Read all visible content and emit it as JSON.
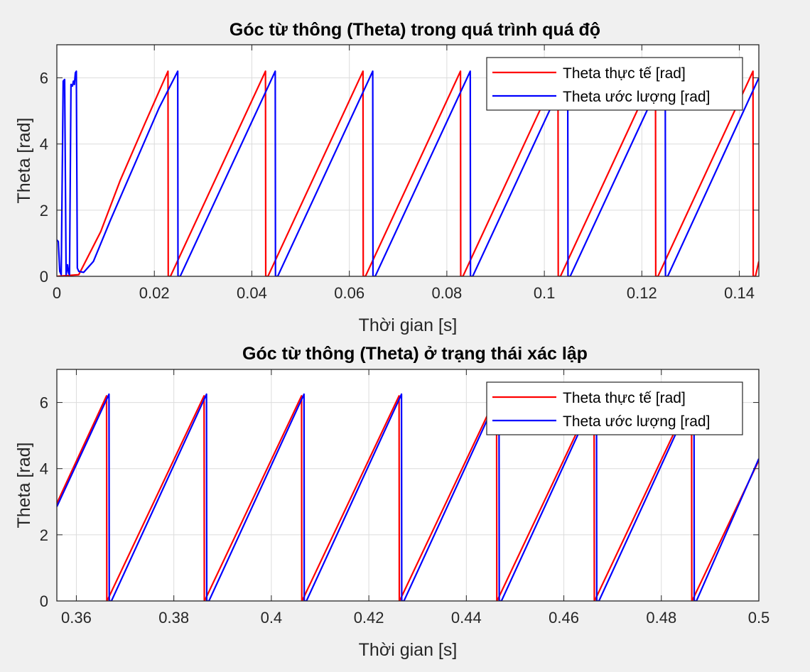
{
  "chart_data": [
    {
      "type": "line",
      "title": "Góc từ thông (Theta) trong quá trình quá độ",
      "xlabel": "Thời gian [s]",
      "ylabel": "Theta [rad]",
      "xlim": [
        0,
        0.144
      ],
      "ylim": [
        0,
        7
      ],
      "xticks": [
        0,
        0.02,
        0.04,
        0.06,
        0.08,
        0.1,
        0.12,
        0.14
      ],
      "xtick_labels": [
        "0",
        "0.02",
        "0.04",
        "0.06",
        "0.08",
        "0.1",
        "0.12",
        "0.14"
      ],
      "yticks": [
        0,
        2,
        4,
        6
      ],
      "ytick_labels": [
        "0",
        "2",
        "4",
        "6"
      ],
      "grid": true,
      "legend_position": "top-right",
      "series": [
        {
          "name": "Theta thực tế [rad]",
          "color": "#ff0000",
          "x": [
            0,
            0.0045,
            0.009,
            0.013,
            0.018,
            0.0228,
            0.02285,
            0.0233,
            0.0428,
            0.04285,
            0.0433,
            0.0628,
            0.06285,
            0.0633,
            0.0828,
            0.08285,
            0.0833,
            0.1028,
            0.10285,
            0.1033,
            0.1228,
            0.12285,
            0.1233,
            0.1428,
            0.14285,
            0.1433,
            0.144
          ],
          "y": [
            0,
            0.05,
            1.35,
            2.9,
            4.6,
            6.2,
            0,
            0,
            6.2,
            0,
            0,
            6.2,
            0,
            0,
            6.2,
            0,
            0,
            6.2,
            0,
            0,
            6.2,
            0,
            0,
            6.2,
            0,
            0,
            0.45
          ]
        },
        {
          "name": "Theta ước lượng [rad]",
          "color": "#0000ff",
          "x": [
            0,
            0.0003,
            0.0006,
            0.0009,
            0.0013,
            0.0016,
            0.0019,
            0.0022,
            0.0024,
            0.0026,
            0.0029,
            0.0032,
            0.0034,
            0.0036,
            0.0038,
            0.004,
            0.0042,
            0.0045,
            0.0055,
            0.0075,
            0.011,
            0.016,
            0.021,
            0.0248,
            0.02485,
            0.0253,
            0.0448,
            0.04485,
            0.0453,
            0.0648,
            0.06485,
            0.0653,
            0.0848,
            0.08485,
            0.0853,
            0.1048,
            0.10485,
            0.1053,
            0.1248,
            0.12485,
            0.1253,
            0.144
          ],
          "y": [
            1.1,
            1.05,
            0.15,
            0.05,
            5.9,
            5.95,
            0.05,
            0.35,
            0.1,
            0.05,
            5.8,
            5.75,
            5.9,
            5.8,
            6.15,
            6.2,
            0.25,
            0.15,
            0.12,
            0.45,
            1.7,
            3.4,
            5.1,
            6.2,
            0,
            0,
            6.2,
            0,
            0,
            6.2,
            0,
            0,
            6.2,
            0,
            0,
            6.2,
            0,
            0,
            6.2,
            0,
            0,
            6.0
          ]
        }
      ]
    },
    {
      "type": "line",
      "title": "Góc từ thông (Theta) ở trạng thái xác lập",
      "xlabel": "Thời gian [s]",
      "ylabel": "Theta [rad]",
      "xlim": [
        0.356,
        0.5
      ],
      "ylim": [
        0,
        7
      ],
      "xticks": [
        0.36,
        0.38,
        0.4,
        0.42,
        0.44,
        0.46,
        0.48,
        0.5
      ],
      "xtick_labels": [
        "0.36",
        "0.38",
        "0.4",
        "0.42",
        "0.44",
        "0.46",
        "0.48",
        "0.5"
      ],
      "yticks": [
        0,
        2,
        4,
        6
      ],
      "ytick_labels": [
        "0",
        "2",
        "4",
        "6"
      ],
      "grid": true,
      "legend_position": "top-right",
      "series": [
        {
          "name": "Theta thực tế [rad]",
          "color": "#ff0000",
          "x": [
            0.356,
            0.3662,
            0.36625,
            0.3663,
            0.3862,
            0.38625,
            0.3863,
            0.4062,
            0.40625,
            0.4063,
            0.4262,
            0.42625,
            0.4263,
            0.4462,
            0.44625,
            0.4463,
            0.4662,
            0.46625,
            0.4663,
            0.4862,
            0.48625,
            0.4863,
            0.5
          ],
          "y": [
            2.95,
            6.2,
            0,
            0,
            6.2,
            0,
            0,
            6.2,
            0,
            0,
            6.2,
            0,
            0,
            6.2,
            0,
            0,
            6.2,
            0,
            0,
            6.2,
            0,
            0,
            4.25
          ]
        },
        {
          "name": "Theta ước lượng [rad]",
          "color": "#0000ff",
          "x": [
            0.356,
            0.3667,
            0.36675,
            0.3672,
            0.3867,
            0.38675,
            0.3872,
            0.4067,
            0.40675,
            0.4072,
            0.4267,
            0.42675,
            0.4272,
            0.4467,
            0.44675,
            0.4472,
            0.4667,
            0.46675,
            0.4672,
            0.4867,
            0.48675,
            0.4872,
            0.5
          ],
          "y": [
            2.85,
            6.25,
            0,
            0,
            6.25,
            0,
            0,
            6.25,
            0,
            0,
            6.25,
            0,
            0,
            6.25,
            0,
            0,
            6.25,
            0,
            0,
            6.25,
            0,
            0,
            4.3
          ]
        }
      ]
    }
  ]
}
